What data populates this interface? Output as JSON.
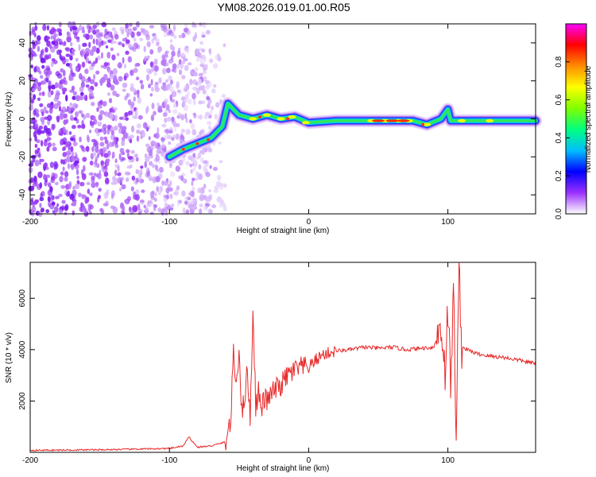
{
  "title": "YM08.2026.019.01.00.R05",
  "chart_data": [
    {
      "type": "heatmap",
      "name": "spectrogram",
      "xlabel": "Height of straight line (km)",
      "ylabel": "Frequency (Hz)",
      "xlim": [
        -200,
        163
      ],
      "ylim": [
        -50,
        50
      ],
      "xticks": [
        -200,
        -100,
        0,
        100
      ],
      "yticks": [
        -40,
        -20,
        0,
        20,
        40
      ],
      "colorbar": {
        "label": "Normalized spectral amplitude",
        "range": [
          0.0,
          1.0
        ],
        "ticks": [
          0.0,
          0.2,
          0.4,
          0.6,
          0.8
        ],
        "colors": [
          "#ffffff",
          "#9b30ff",
          "#0000ff",
          "#00bfff",
          "#00ff7f",
          "#7fff00",
          "#ffff00",
          "#ff8c00",
          "#ff0000",
          "#ff00ff"
        ]
      },
      "ridge": [
        {
          "x": -100,
          "y": -20
        },
        {
          "x": -90,
          "y": -16
        },
        {
          "x": -80,
          "y": -13
        },
        {
          "x": -70,
          "y": -10
        },
        {
          "x": -62,
          "y": -4
        },
        {
          "x": -58,
          "y": 8
        },
        {
          "x": -50,
          "y": 2
        },
        {
          "x": -40,
          "y": 0
        },
        {
          "x": -30,
          "y": 2
        },
        {
          "x": -20,
          "y": 0
        },
        {
          "x": -10,
          "y": 1
        },
        {
          "x": 0,
          "y": -2
        },
        {
          "x": 20,
          "y": -1
        },
        {
          "x": 50,
          "y": -1
        },
        {
          "x": 75,
          "y": -1
        },
        {
          "x": 85,
          "y": -3
        },
        {
          "x": 95,
          "y": 0
        },
        {
          "x": 100,
          "y": 5
        },
        {
          "x": 102,
          "y": -1
        },
        {
          "x": 130,
          "y": -1
        },
        {
          "x": 163,
          "y": -1
        }
      ]
    },
    {
      "type": "line",
      "name": "snr",
      "xlabel": "Height of straight line (km)",
      "ylabel": "SNR (10 * v/v)",
      "xlim": [
        -200,
        163
      ],
      "ylim": [
        0,
        7400
      ],
      "xticks": [
        -200,
        -100,
        0,
        100
      ],
      "yticks": [
        2000,
        4000,
        6000
      ],
      "color": "#e82a2a",
      "x": [
        -200,
        -150,
        -100,
        -90,
        -86,
        -80,
        -70,
        -60,
        -56,
        -54,
        -52,
        -50,
        -48,
        -46,
        -44,
        -42,
        -40,
        -38,
        -36,
        -34,
        -32,
        -30,
        -25,
        -20,
        -15,
        -10,
        -5,
        0,
        5,
        10,
        20,
        30,
        40,
        50,
        60,
        70,
        80,
        90,
        95,
        98,
        100,
        102,
        104,
        106,
        108,
        110,
        120,
        130,
        140,
        150,
        163
      ],
      "values": [
        80,
        100,
        150,
        250,
        600,
        200,
        250,
        400,
        1200,
        3800,
        2600,
        4100,
        1500,
        2200,
        3200,
        1300,
        5600,
        1800,
        2400,
        1600,
        2100,
        2000,
        2400,
        2600,
        3000,
        3200,
        3300,
        3300,
        3600,
        3800,
        3950,
        4000,
        4100,
        4050,
        4100,
        4000,
        4050,
        4100,
        5000,
        3200,
        5600,
        2600,
        6200,
        800,
        7200,
        4100,
        3850,
        3750,
        3700,
        3600,
        3450
      ]
    }
  ]
}
